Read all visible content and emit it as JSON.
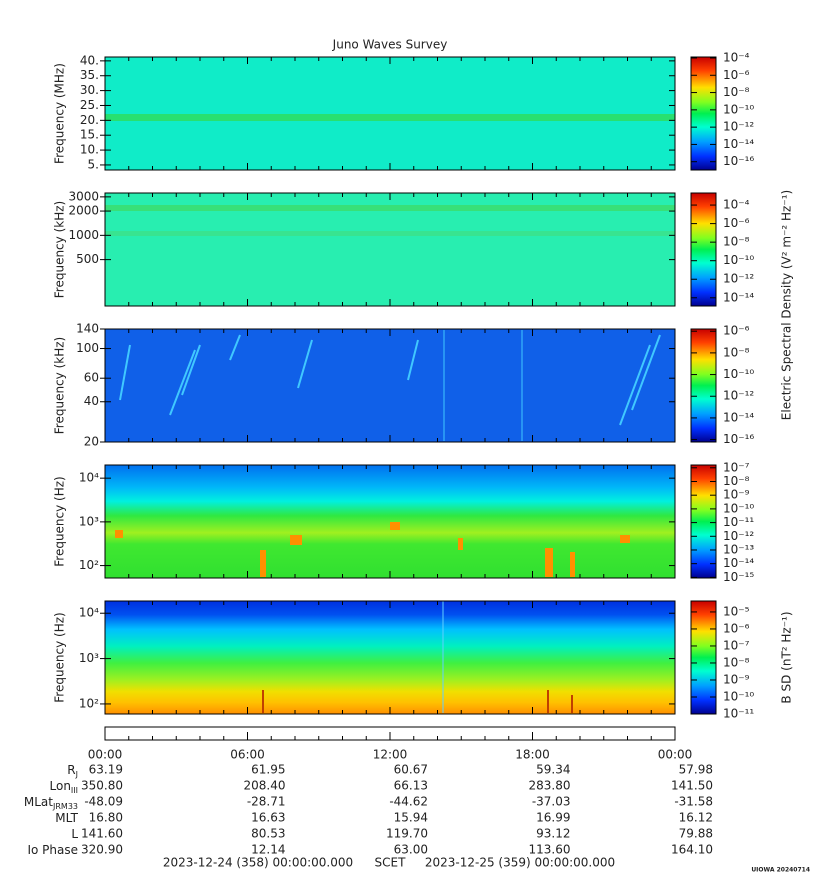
{
  "chart_data": [
    {
      "type": "spectrogram",
      "title": "Juno Waves Survey",
      "ylabel": "Frequency (MHz)",
      "log": false,
      "ylim": [
        3.3,
        41.3
      ],
      "yticks": [
        {
          "value": 5,
          "label": "5."
        },
        {
          "value": 10,
          "label": "10."
        },
        {
          "value": 15,
          "label": "15."
        },
        {
          "value": 20,
          "label": "20."
        },
        {
          "value": 25,
          "label": "25."
        },
        {
          "value": 30,
          "label": "30."
        },
        {
          "value": 35,
          "label": "35."
        },
        {
          "value": 40,
          "label": "40."
        }
      ],
      "colorbar": {
        "clim": [
          1.1e-17,
          0.00013
        ],
        "ticks": [
          {
            "value": 1e-16,
            "label": "10⁻¹⁶"
          },
          {
            "value": 1e-14,
            "label": "10⁻¹⁴"
          },
          {
            "value": 1e-12,
            "label": "10⁻¹²"
          },
          {
            "value": 1e-10,
            "label": "10⁻¹⁰"
          },
          {
            "value": 1e-08,
            "label": "10⁻⁸"
          },
          {
            "value": 1e-06,
            "label": "10⁻⁶"
          },
          {
            "value": 0.0001,
            "label": "10⁻⁴"
          }
        ]
      }
    },
    {
      "type": "spectrogram",
      "ylabel": "Frequency (kHz)",
      "log": true,
      "ylim": [
        133,
        3350
      ],
      "yticks": [
        500,
        1000,
        2000,
        3000
      ],
      "colorbar": {
        "clim": [
          1.3e-15,
          0.002
        ],
        "ticks": [
          {
            "value": 1e-14,
            "label": "10⁻¹⁴"
          },
          {
            "value": 1e-12,
            "label": "10⁻¹²"
          },
          {
            "value": 1e-10,
            "label": "10⁻¹⁰"
          },
          {
            "value": 1e-08,
            "label": "10⁻⁸"
          },
          {
            "value": 1e-06,
            "label": "10⁻⁶"
          },
          {
            "value": 0.0001,
            "label": "10⁻⁴"
          }
        ]
      },
      "clabel": "Electric Spectral Density (V² m⁻² Hz⁻¹)"
    },
    {
      "type": "spectrogram",
      "ylabel": "Frequency (kHz)",
      "log": true,
      "ylim": [
        20,
        140
      ],
      "yticks": [
        20,
        40,
        60,
        100,
        140
      ],
      "colorbar": {
        "clim": [
          6e-17,
          1.6e-06
        ],
        "ticks": [
          {
            "value": 1e-16,
            "label": "10⁻¹⁶"
          },
          {
            "value": 1e-14,
            "label": "10⁻¹⁴"
          },
          {
            "value": 1e-12,
            "label": "10⁻¹²"
          },
          {
            "value": 1e-10,
            "label": "10⁻¹⁰"
          },
          {
            "value": 1e-08,
            "label": "10⁻⁸"
          },
          {
            "value": 1e-06,
            "label": "10⁻⁶"
          }
        ]
      }
    },
    {
      "type": "spectrogram",
      "ylabel": "Frequency (Hz)",
      "log": true,
      "ylim": [
        52,
        20000
      ],
      "yticks": [
        {
          "value": 100,
          "label": "10²"
        },
        {
          "value": 1000,
          "label": "10³"
        },
        {
          "value": 10000,
          "label": "10⁴"
        }
      ],
      "colorbar": {
        "clim": [
          9e-16,
          1.6e-07
        ],
        "ticks": [
          {
            "value": 1e-15,
            "label": "10⁻¹⁵"
          },
          {
            "value": 1e-14,
            "label": "10⁻¹⁴"
          },
          {
            "value": 1e-13,
            "label": "10⁻¹³"
          },
          {
            "value": 1e-12,
            "label": "10⁻¹²"
          },
          {
            "value": 1e-11,
            "label": "10⁻¹¹"
          },
          {
            "value": 1e-10,
            "label": "10⁻¹⁰"
          },
          {
            "value": 1e-09,
            "label": "10⁻⁹"
          },
          {
            "value": 1e-08,
            "label": "10⁻⁸"
          },
          {
            "value": 1e-07,
            "label": "10⁻⁷"
          }
        ]
      }
    },
    {
      "type": "spectrogram",
      "ylabel": "Frequency (Hz)",
      "log": true,
      "ylim": [
        60,
        18600
      ],
      "yticks": [
        {
          "value": 100,
          "label": "10²"
        },
        {
          "value": 1000,
          "label": "10³"
        },
        {
          "value": 10000,
          "label": "10⁴"
        }
      ],
      "colorbar": {
        "clim": [
          1e-11,
          4.4e-05
        ],
        "ticks": [
          {
            "value": 1e-11,
            "label": "10⁻¹¹"
          },
          {
            "value": 1e-10,
            "label": "10⁻¹⁰"
          },
          {
            "value": 1e-09,
            "label": "10⁻⁹"
          },
          {
            "value": 1e-08,
            "label": "10⁻⁸"
          },
          {
            "value": 1e-07,
            "label": "10⁻⁷"
          },
          {
            "value": 1e-06,
            "label": "10⁻⁶"
          },
          {
            "value": 1e-05,
            "label": "10⁻⁵"
          }
        ]
      },
      "clabel": "B SD (nT² Hz⁻¹)"
    }
  ],
  "time_axis": {
    "ticks": [
      "00:00",
      "06:00",
      "12:00",
      "18:00",
      "00:00"
    ],
    "start": "2023-12-24 (358) 00:00:00.000",
    "label": "SCET",
    "end": "2023-12-25 (359) 00:00:00.000"
  },
  "ephemeris": [
    {
      "label": "R",
      "sub": "J",
      "values": [
        "63.19",
        "61.95",
        "60.67",
        "59.34",
        "57.98"
      ]
    },
    {
      "label": "Lon",
      "sub": "III",
      "values": [
        "350.80",
        "208.40",
        "66.13",
        "283.80",
        "141.50"
      ]
    },
    {
      "label": "MLat",
      "sub": "JRM33",
      "values": [
        "-48.09",
        "-28.71",
        "-44.62",
        "-37.03",
        "-31.58"
      ]
    },
    {
      "label": "MLT",
      "values": [
        "16.80",
        "16.63",
        "15.94",
        "16.99",
        "16.12"
      ]
    },
    {
      "label": "L",
      "values": [
        "141.60",
        "80.53",
        "119.70",
        "93.12",
        "79.88"
      ]
    },
    {
      "label": "Io Phase",
      "values": [
        "320.90",
        "12.14",
        "63.00",
        "113.60",
        "164.10"
      ]
    }
  ],
  "credit": "UIOWA 20240714"
}
